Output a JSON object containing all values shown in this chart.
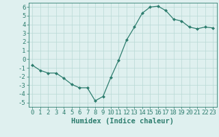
{
  "x": [
    0,
    1,
    2,
    3,
    4,
    5,
    6,
    7,
    8,
    9,
    10,
    11,
    12,
    13,
    14,
    15,
    16,
    17,
    18,
    19,
    20,
    21,
    22,
    23
  ],
  "y": [
    -0.7,
    -1.3,
    -1.6,
    -1.6,
    -2.2,
    -2.9,
    -3.3,
    -3.3,
    -4.8,
    -4.3,
    -2.1,
    -0.1,
    2.2,
    3.7,
    5.3,
    6.0,
    6.1,
    5.6,
    4.6,
    4.4,
    3.7,
    3.5,
    3.7,
    3.6
  ],
  "xlabel": "Humidex (Indice chaleur)",
  "xlim": [
    -0.5,
    23.5
  ],
  "ylim": [
    -5.5,
    6.5
  ],
  "yticks": [
    -5,
    -4,
    -3,
    -2,
    -1,
    0,
    1,
    2,
    3,
    4,
    5,
    6
  ],
  "xticks": [
    0,
    1,
    2,
    3,
    4,
    5,
    6,
    7,
    8,
    9,
    10,
    11,
    12,
    13,
    14,
    15,
    16,
    17,
    18,
    19,
    20,
    21,
    22,
    23
  ],
  "line_color": "#2d7d6e",
  "marker": "D",
  "marker_size": 2.0,
  "bg_color": "#dff0ef",
  "grid_color": "#b8d8d5",
  "font_color": "#2d7d6e",
  "xlabel_fontsize": 7.5,
  "tick_fontsize": 6.5
}
